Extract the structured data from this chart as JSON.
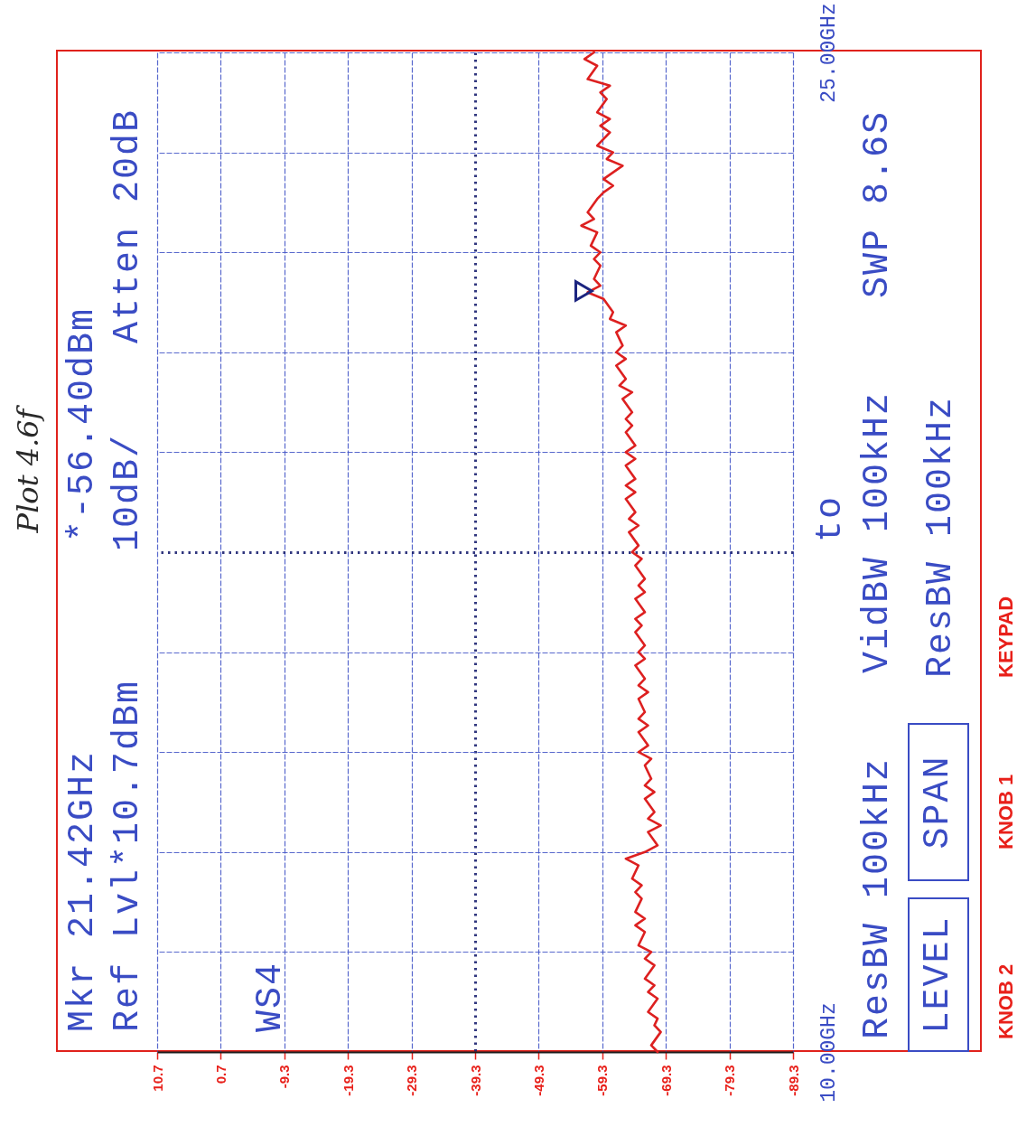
{
  "chart_data": {
    "type": "line",
    "title": "Plot 4.6f",
    "series": [
      {
        "color": "#dd2020",
        "x": [
          -68,
          -67,
          -68.5,
          -67.5,
          -68,
          -66.5,
          -68,
          -66.5,
          -67.5,
          -66,
          -67.5,
          -66,
          -67,
          -65,
          -66,
          -64.5,
          -66,
          -64.5,
          -65.5,
          -64.5,
          -65.5,
          -64,
          -65,
          -63,
          -66,
          -68,
          -66.5,
          -68.5,
          -66.5,
          -67.5,
          -66,
          -67.5,
          -66,
          -67,
          -66,
          -67,
          -65,
          -66.5,
          -65,
          -66.5,
          -65,
          -66,
          -65,
          -66.5,
          -65,
          -66,
          -64.5,
          -66,
          -65,
          -66,
          -64.5,
          -65.5,
          -64.5,
          -66,
          -64.5,
          -66,
          -65,
          -66,
          -64.5,
          -65.5,
          -64,
          -65,
          -63.5,
          -65,
          -63.5,
          -64.5,
          -63,
          -64.5,
          -63,
          -64.5,
          -63,
          -64.5,
          -63,
          -64.5,
          -63,
          -64,
          -63,
          -64,
          -62.5,
          -64,
          -62,
          -63,
          -61.5,
          -63,
          -61.5,
          -62.5,
          -61.5,
          -63,
          -60.5,
          -61,
          -59.5,
          -57,
          -59,
          -58,
          -59,
          -58,
          -59,
          -57.5,
          -58.5,
          -56,
          -58,
          -57,
          -58.5,
          -59.5,
          -61,
          -59.5,
          -62.5,
          -60,
          -61,
          -58.5,
          -60.5,
          -59,
          -60.5,
          -58.5,
          -60,
          -59,
          -60.5,
          -57,
          -58.5,
          -56.5,
          -58
        ],
        "values": [
          10,
          10.1,
          10.3,
          10.4,
          10.5,
          10.6,
          10.8,
          10.9,
          11,
          11.1,
          11.3,
          11.4,
          11.5,
          11.6,
          11.8,
          11.9,
          12,
          12.1,
          12.3,
          12.4,
          12.5,
          12.6,
          12.8,
          12.9,
          13,
          13.1,
          13.3,
          13.4,
          13.5,
          13.6,
          13.8,
          13.9,
          14,
          14.1,
          14.3,
          14.4,
          14.5,
          14.6,
          14.8,
          14.9,
          15,
          15.1,
          15.3,
          15.4,
          15.5,
          15.6,
          15.8,
          15.9,
          16,
          16.1,
          16.3,
          16.4,
          16.5,
          16.6,
          16.8,
          16.9,
          17,
          17.1,
          17.3,
          17.4,
          17.5,
          17.6,
          17.8,
          17.9,
          18,
          18.1,
          18.3,
          18.4,
          18.5,
          18.6,
          18.8,
          18.9,
          19,
          19.1,
          19.3,
          19.4,
          19.5,
          19.6,
          19.8,
          19.9,
          20,
          20.1,
          20.3,
          20.4,
          20.5,
          20.6,
          20.8,
          20.9,
          21,
          21.1,
          21.3,
          21.4,
          21.5,
          21.6,
          21.8,
          21.9,
          22,
          22.1,
          22.3,
          22.4,
          22.5,
          22.6,
          22.8,
          22.9,
          23,
          23.1,
          23.3,
          23.4,
          23.5,
          23.6,
          23.8,
          23.9,
          24,
          24.1,
          24.3,
          24.4,
          24.5,
          24.6,
          24.8,
          24.9,
          25
        ]
      },
      {
        "type": "scatter",
        "color": "#1c2580",
        "marker": "triangle",
        "x": [
          -56.4
        ],
        "values": [
          21.42
        ]
      }
    ],
    "xlim": [
      10.7,
      -89.3
    ],
    "xticks": [
      10.7,
      0.7,
      -9.3,
      -19.3,
      -29.3,
      -39.3,
      -49.3,
      -59.3,
      -69.3,
      -79.3,
      -89.3
    ],
    "ylim": [
      10,
      25
    ],
    "yticks": [
      {
        "value": 10,
        "label": "10.00GHz"
      },
      {
        "value": 11.5,
        "label": null
      },
      {
        "value": 13,
        "label": null
      },
      {
        "value": 14.5,
        "label": null
      },
      {
        "value": 16,
        "label": null
      },
      {
        "value": 17.5,
        "label": null
      },
      {
        "value": 19,
        "label": null
      },
      {
        "value": 20.5,
        "label": null
      },
      {
        "value": 22,
        "label": null
      },
      {
        "value": 23.5,
        "label": null
      },
      {
        "value": 25,
        "label": "25.00GHz"
      }
    ],
    "grid": true,
    "annotations": [
      "Mkr 21.42GHz",
      "*-56.40dBm",
      "Ref Lvl*10.7dBm",
      "10dB/",
      "Atten 20dB",
      "WS4",
      "to",
      "ResBW 100kHz",
      "VidBW 100kHz",
      "SWP 8.6S",
      "LEVEL",
      "SPAN",
      "ResBW 100kHz",
      "KNOB 2",
      "KNOB 1",
      "KEYPAD"
    ]
  }
}
